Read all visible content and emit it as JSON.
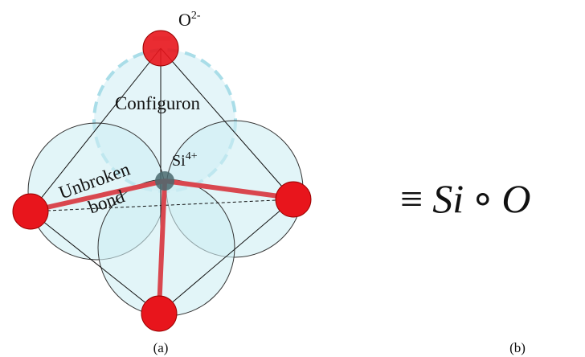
{
  "diagram": {
    "labels": {
      "oxygen": {
        "element": "O",
        "charge": "2-"
      },
      "configuron": "Configuron",
      "silicon": {
        "element": "Si",
        "charge": "4+"
      },
      "unbroken_bond": {
        "line1": "Unbroken",
        "line2": "bond"
      }
    },
    "formula": {
      "equiv": "≡",
      "si": "Si",
      "op": "∘",
      "o": "O"
    },
    "captions": {
      "a": "(a)",
      "b": "(b)"
    }
  }
}
